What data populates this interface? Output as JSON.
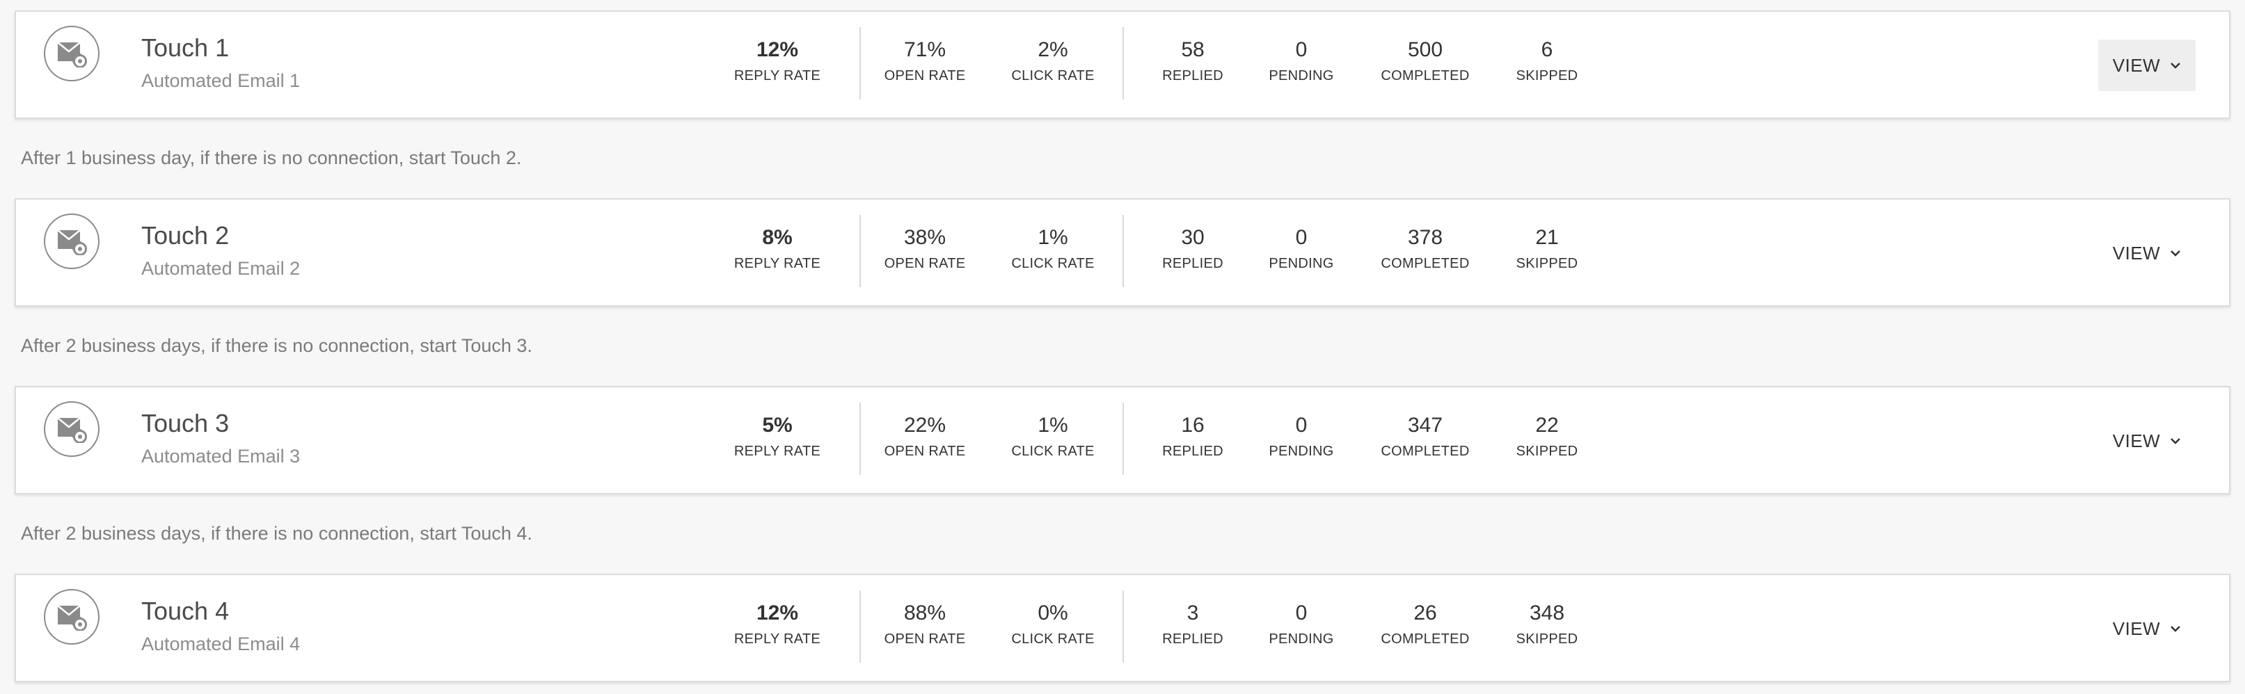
{
  "touches": [
    {
      "title": "Touch 1",
      "subtitle": "Automated Email 1",
      "reply_rate": "12%",
      "open_rate": "71%",
      "click_rate": "2%",
      "replied": "58",
      "pending": "0",
      "completed": "500",
      "skipped": "6"
    },
    {
      "title": "Touch 2",
      "subtitle": "Automated Email 2",
      "reply_rate": "8%",
      "open_rate": "38%",
      "click_rate": "1%",
      "replied": "30",
      "pending": "0",
      "completed": "378",
      "skipped": "21"
    },
    {
      "title": "Touch 3",
      "subtitle": "Automated Email 3",
      "reply_rate": "5%",
      "open_rate": "22%",
      "click_rate": "1%",
      "replied": "16",
      "pending": "0",
      "completed": "347",
      "skipped": "22"
    },
    {
      "title": "Touch 4",
      "subtitle": "Automated Email 4",
      "reply_rate": "12%",
      "open_rate": "88%",
      "click_rate": "0%",
      "replied": "3",
      "pending": "0",
      "completed": "26",
      "skipped": "348"
    }
  ],
  "connectors": [
    "After 1 business day, if there is no connection, start Touch 2.",
    "After 2 business days, if there is no connection, start Touch 3.",
    "After 2 business days, if there is no connection, start Touch 4."
  ],
  "labels": {
    "reply_rate": "REPLY RATE",
    "open_rate": "OPEN RATE",
    "click_rate": "CLICK RATE",
    "replied": "REPLIED",
    "pending": "PENDING",
    "completed": "COMPLETED",
    "skipped": "SKIPPED",
    "view": "VIEW"
  },
  "icons": {
    "touch": "automated-email-icon",
    "view": "chevron-down-icon"
  }
}
